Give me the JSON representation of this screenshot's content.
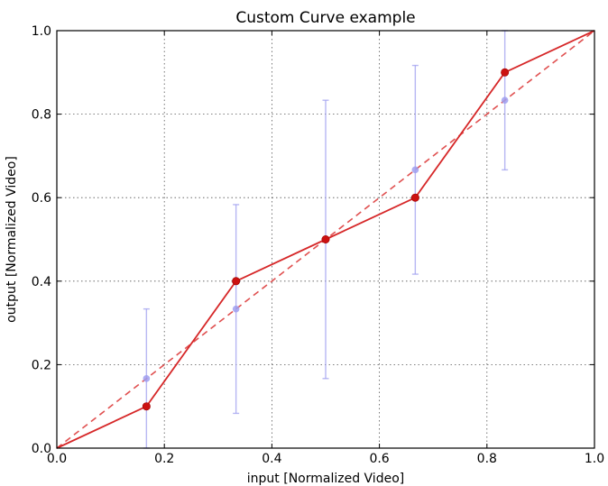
{
  "chart_data": {
    "type": "line",
    "title": "Custom Curve example",
    "xlabel": "input [Normalized Video]",
    "ylabel": "output [Normalized Video]",
    "xlim": [
      0.0,
      1.0
    ],
    "ylim": [
      0.0,
      1.0
    ],
    "grid": true,
    "legend": "none",
    "x_ticks": [
      "0.0",
      "0.2",
      "0.4",
      "0.6",
      "0.8",
      "1.0"
    ],
    "y_ticks": [
      "0.0",
      "0.2",
      "0.4",
      "0.6",
      "0.8",
      "1.0"
    ],
    "series": [
      {
        "style": "solid line with markers",
        "color": "#d62728",
        "x": [
          0.0,
          0.1667,
          0.3333,
          0.5,
          0.6667,
          0.8333,
          1.0
        ],
        "y": [
          0.0,
          0.1,
          0.4,
          0.5,
          0.6,
          0.9,
          1.0
        ]
      },
      {
        "style": "dashed line",
        "color": "#e05050",
        "x": [
          0.0,
          1.0
        ],
        "y": [
          0.0,
          1.0
        ]
      },
      {
        "style": "points with error bars",
        "color": "#9f9ff0",
        "x": [
          0.1667,
          0.3333,
          0.5,
          0.6667,
          0.8333
        ],
        "y": [
          0.1667,
          0.3333,
          0.5,
          0.6667,
          0.8333
        ],
        "yerr": [
          0.1667,
          0.25,
          0.3333,
          0.25,
          0.1667
        ]
      }
    ]
  }
}
